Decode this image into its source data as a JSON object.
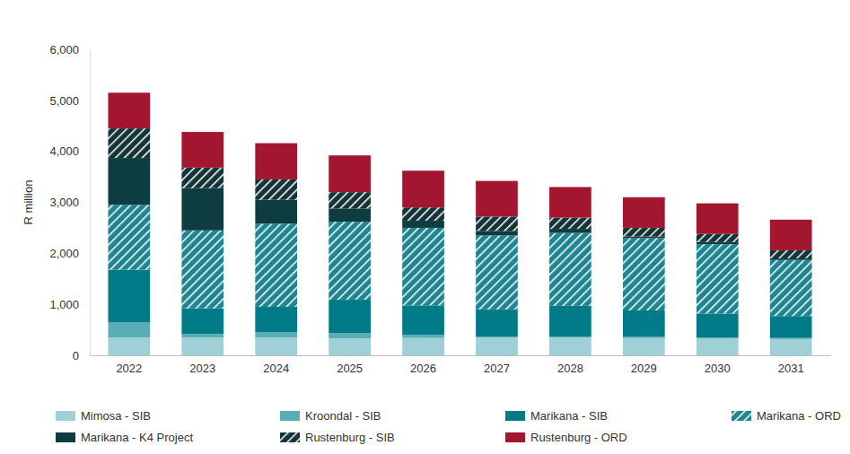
{
  "chart_data": {
    "type": "bar",
    "stacked": true,
    "grid": false,
    "legend": "bottom",
    "y_label": "R million",
    "categories": [
      "2022",
      "2023",
      "2024",
      "2025",
      "2026",
      "2027",
      "2028",
      "2029",
      "2030",
      "2031"
    ],
    "ylim": [
      0,
      6000
    ],
    "yticks": [
      0,
      {
        "value": 1000,
        "label": "1,000"
      },
      {
        "value": 2000,
        "label": "2,000"
      },
      {
        "value": 3000,
        "label": "3,000"
      },
      {
        "value": 4000,
        "label": "4,000"
      },
      {
        "value": 5000,
        "label": "5,000"
      },
      {
        "value": 6000,
        "label": "6,000"
      }
    ],
    "series": [
      {
        "name": "Mimosa - SIB",
        "color": "#9fd0d6",
        "values": [
          350,
          350,
          350,
          330,
          340,
          350,
          350,
          340,
          330,
          320
        ]
      },
      {
        "name": "Kroondal - SIB",
        "color": "#5aadb6",
        "values": [
          300,
          70,
          100,
          110,
          60,
          20,
          20,
          20,
          20,
          20
        ]
      },
      {
        "name": "Marikana - SIB",
        "color": "#017b87",
        "values": [
          1030,
          500,
          500,
          650,
          580,
          530,
          600,
          520,
          470,
          430
        ]
      },
      {
        "name": "Marikana - ORD",
        "color": "#1f8591",
        "line_style": "hatched",
        "values": [
          1270,
          1530,
          1630,
          1530,
          1520,
          1450,
          1430,
          1420,
          1360,
          1100
        ]
      },
      {
        "name": "Marikana - K4 Project",
        "color": "#0d3c41",
        "values": [
          920,
          830,
          470,
          260,
          140,
          90,
          80,
          30,
          40,
          30
        ]
      },
      {
        "name": "Rustenburg - SIB",
        "color": "#143438",
        "line_style": "hatched",
        "values": [
          580,
          400,
          400,
          320,
          260,
          280,
          220,
          170,
          160,
          160
        ]
      },
      {
        "name": "Rustenburg - ORD",
        "color": "#a3162f",
        "values": [
          700,
          700,
          710,
          720,
          720,
          700,
          600,
          600,
          600,
          600
        ]
      }
    ]
  }
}
